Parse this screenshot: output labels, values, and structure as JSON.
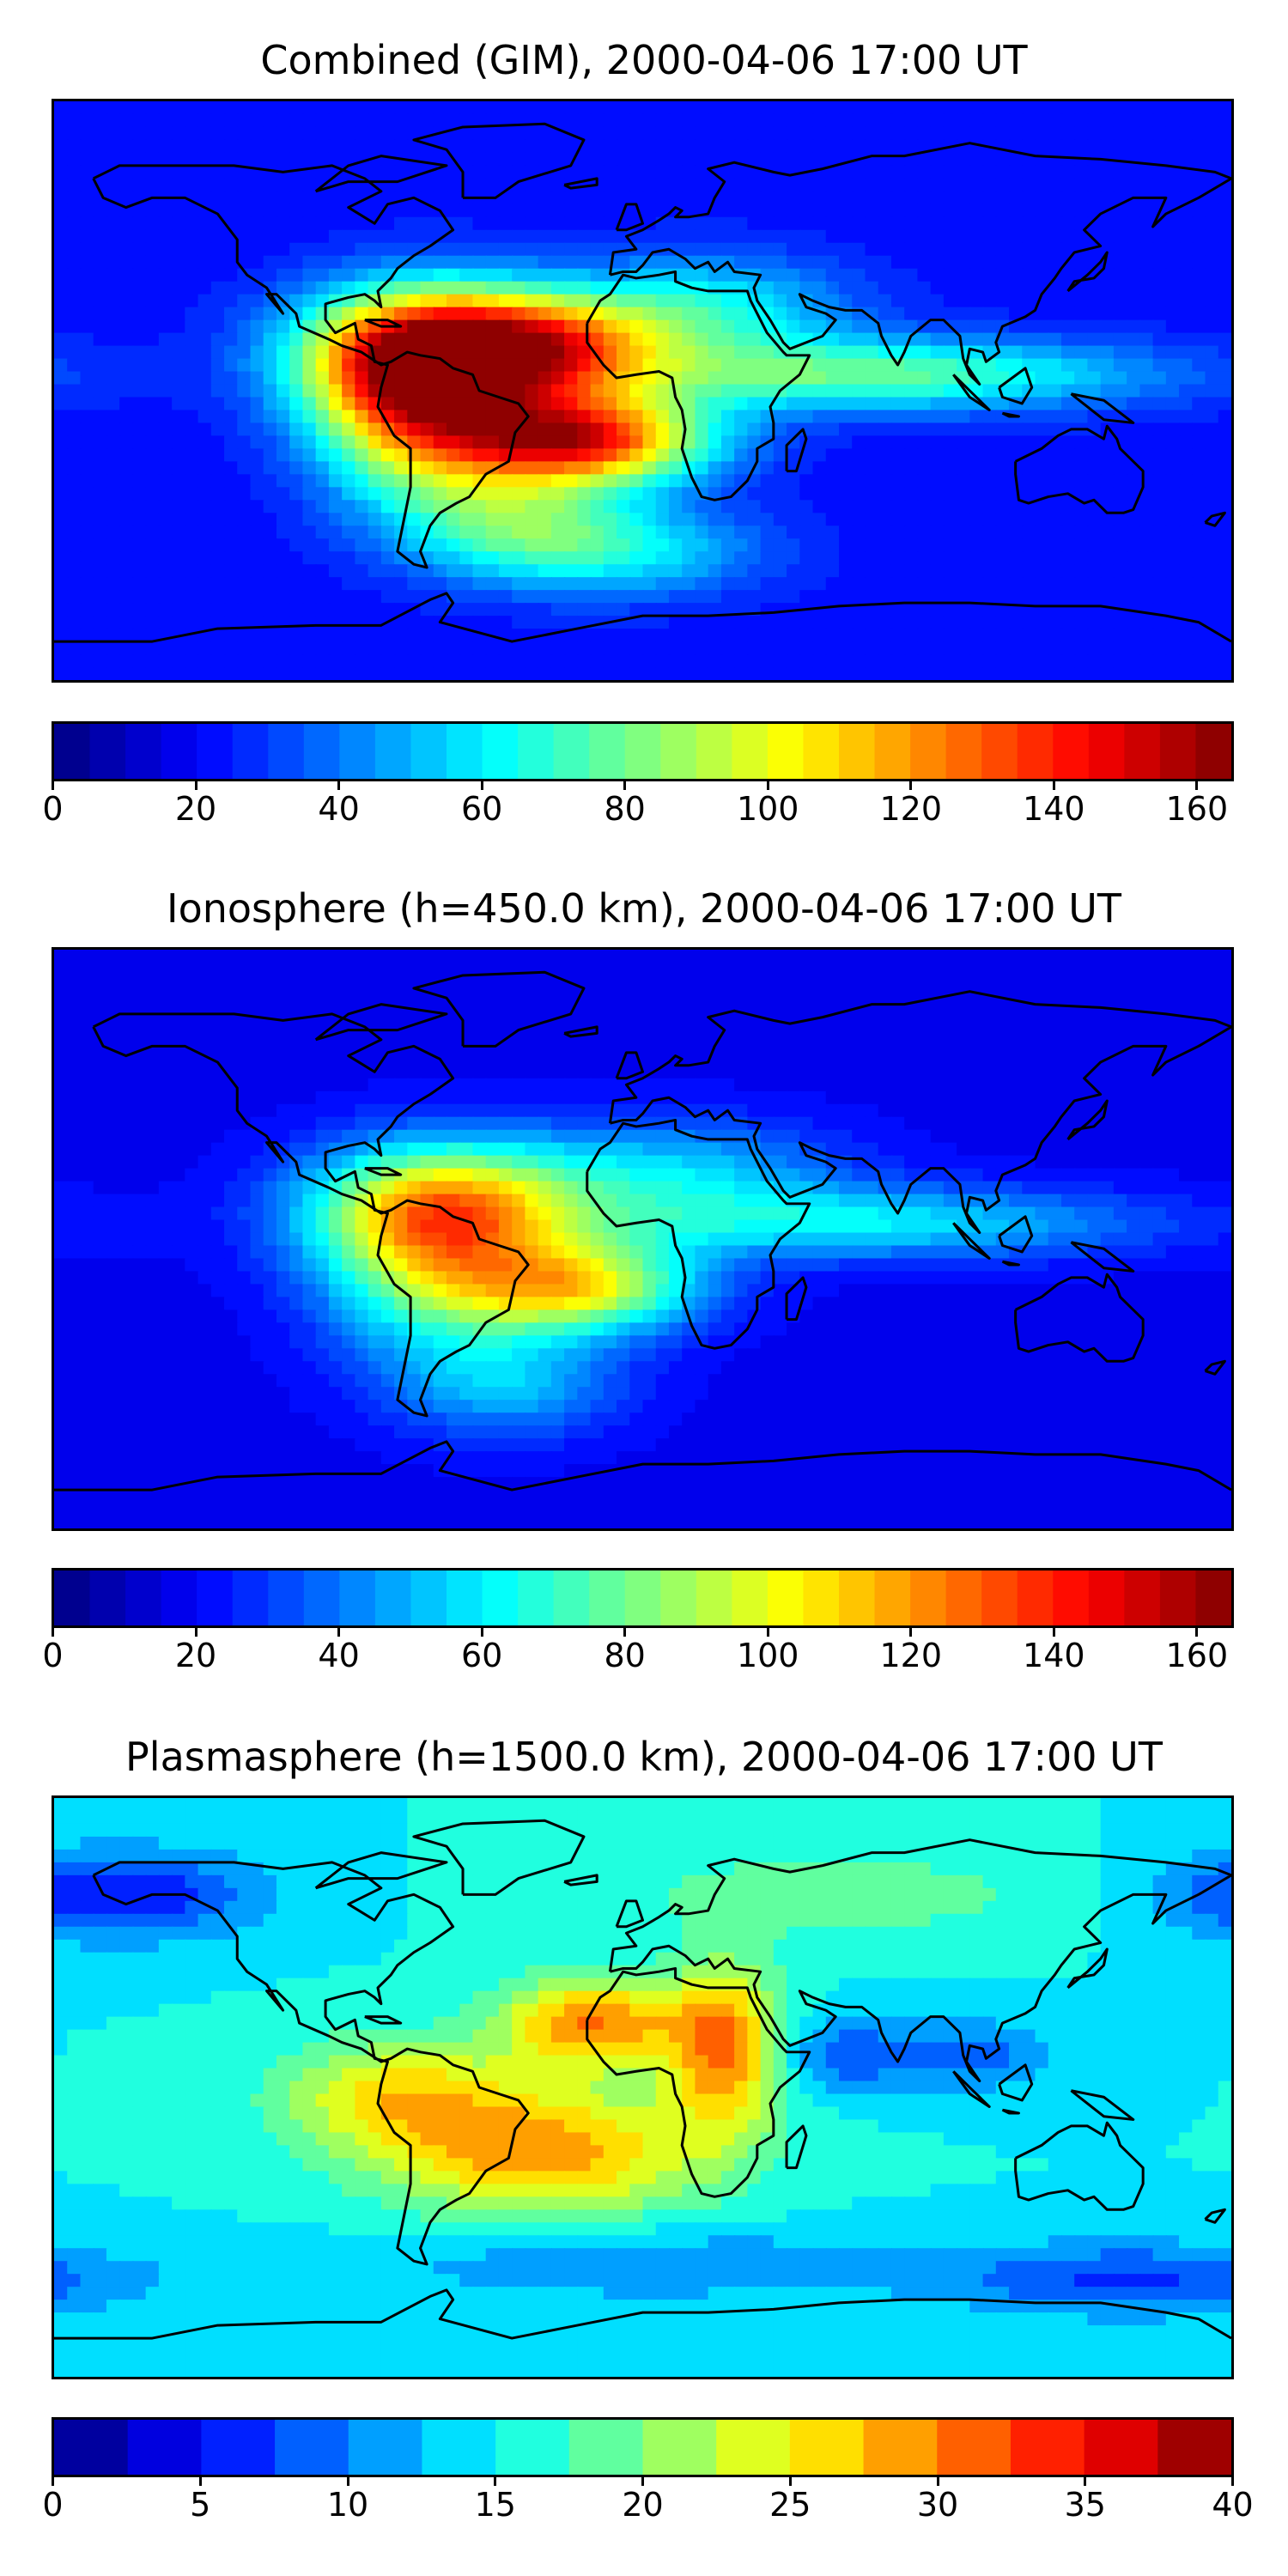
{
  "panels": [
    {
      "id": "combined",
      "title": "Combined (GIM), 2000-04-06 17:00 UT",
      "colorbar": {
        "min": 0,
        "max": 165,
        "levels": 33,
        "ticks": [
          "0",
          "20",
          "40",
          "60",
          "80",
          "100",
          "120",
          "140",
          "160"
        ]
      },
      "field": {
        "background": 22,
        "blobs": [
          {
            "lon": -60,
            "lat": 12,
            "sx": 30,
            "sy": 14,
            "amp": 115
          },
          {
            "lon": -20,
            "lat": -15,
            "sx": 28,
            "sy": 10,
            "amp": 120
          },
          {
            "lon": -70,
            "lat": -5,
            "sx": 22,
            "sy": 20,
            "amp": 80
          },
          {
            "lon": -25,
            "lat": 15,
            "sx": 25,
            "sy": 10,
            "amp": 55
          },
          {
            "lon": 70,
            "lat": 5,
            "sx": 60,
            "sy": 8,
            "amp": 55
          },
          {
            "lon": 20,
            "lat": 25,
            "sx": 30,
            "sy": 12,
            "amp": 40
          },
          {
            "lon": -40,
            "lat": -40,
            "sx": 25,
            "sy": 12,
            "amp": 45
          },
          {
            "lon": -5,
            "lat": -50,
            "sx": 30,
            "sy": 10,
            "amp": 35
          }
        ]
      }
    },
    {
      "id": "ionosphere",
      "title": "Ionosphere  (h=450.0 km), 2000-04-06 17:00 UT",
      "colorbar": {
        "min": 0,
        "max": 165,
        "levels": 33,
        "ticks": [
          "0",
          "20",
          "40",
          "60",
          "80",
          "100",
          "120",
          "140",
          "160"
        ]
      },
      "field": {
        "background": 18,
        "blobs": [
          {
            "lon": -60,
            "lat": 10,
            "sx": 30,
            "sy": 14,
            "amp": 80
          },
          {
            "lon": -20,
            "lat": -15,
            "sx": 26,
            "sy": 10,
            "amp": 80
          },
          {
            "lon": -65,
            "lat": -10,
            "sx": 24,
            "sy": 20,
            "amp": 50
          },
          {
            "lon": 70,
            "lat": 5,
            "sx": 60,
            "sy": 8,
            "amp": 40
          },
          {
            "lon": 10,
            "lat": 20,
            "sx": 35,
            "sy": 12,
            "amp": 35
          },
          {
            "lon": -40,
            "lat": -45,
            "sx": 25,
            "sy": 12,
            "amp": 30
          }
        ]
      }
    },
    {
      "id": "plasmasphere",
      "title": "Plasmasphere (h=1500.0 km), 2000-04-06 17:00 UT",
      "colorbar": {
        "min": 0,
        "max": 40,
        "levels": 16,
        "ticks": [
          "0",
          "5",
          "10",
          "15",
          "20",
          "25",
          "30",
          "35",
          "40"
        ]
      },
      "field": {
        "background": 15,
        "blobs": [
          {
            "lon": -30,
            "lat": -20,
            "sx": 35,
            "sy": 14,
            "amp": 14
          },
          {
            "lon": -15,
            "lat": 20,
            "sx": 20,
            "sy": 10,
            "amp": 15
          },
          {
            "lon": 25,
            "lat": 12,
            "sx": 12,
            "sy": 18,
            "amp": 15
          },
          {
            "lon": -75,
            "lat": -2,
            "sx": 25,
            "sy": 12,
            "amp": 10
          },
          {
            "lon": -160,
            "lat": 60,
            "sx": 30,
            "sy": 10,
            "amp": -10
          },
          {
            "lon": 100,
            "lat": 10,
            "sx": 20,
            "sy": 8,
            "amp": -6
          },
          {
            "lon": 60,
            "lat": 10,
            "sx": 15,
            "sy": 8,
            "amp": -6
          },
          {
            "lon": 150,
            "lat": -60,
            "sx": 40,
            "sy": 8,
            "amp": -8
          },
          {
            "lon": 0,
            "lat": -55,
            "sx": 60,
            "sy": 8,
            "amp": -5
          },
          {
            "lon": 60,
            "lat": 60,
            "sx": 50,
            "sy": 10,
            "amp": 4
          }
        ]
      }
    }
  ]
}
